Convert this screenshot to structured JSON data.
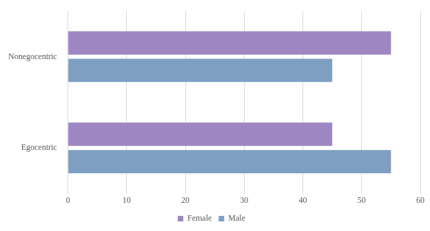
{
  "chart_data": {
    "type": "bar",
    "orientation": "horizontal",
    "categories": [
      "Nonegocentric",
      "Egocentric"
    ],
    "series": [
      {
        "name": "Female",
        "color": "#9e86c3",
        "values": [
          55,
          45
        ]
      },
      {
        "name": "Male",
        "color": "#7f9fc2",
        "values": [
          45,
          55
        ]
      }
    ],
    "xlim": [
      0,
      60
    ],
    "xticks": [
      0,
      10,
      20,
      30,
      40,
      50,
      60
    ],
    "grid": true,
    "legend": "bottom"
  }
}
